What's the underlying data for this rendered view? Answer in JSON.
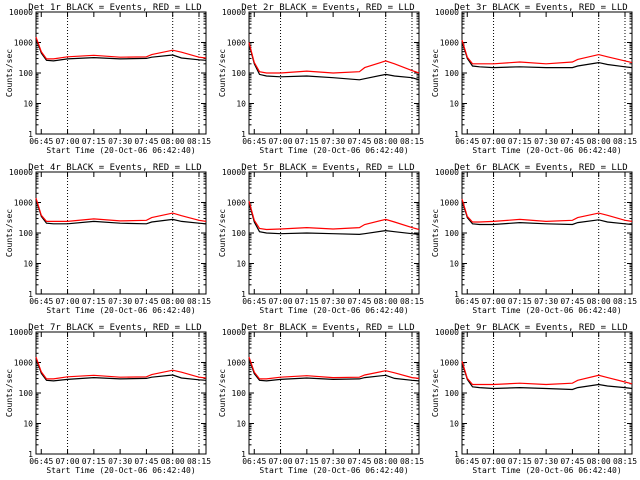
{
  "figure": {
    "ylabel": "Counts/sec",
    "xlabel": "Start Time (20-Oct-06 06:42:40)",
    "x_ticks": [
      "06:45",
      "07:00",
      "07:15",
      "07:30",
      "07:45",
      "08:00",
      "08:15"
    ],
    "y_ticks": [
      "1",
      "10",
      "100",
      "1000",
      "10000"
    ],
    "colors": {
      "events": "#000000",
      "lld": "#ff0000",
      "frame": "#000000"
    }
  },
  "chart_data": [
    {
      "type": "line",
      "title": "Det 1r BLACK = Events, RED = LLD",
      "x": [
        "06:42",
        "06:45",
        "06:48",
        "06:52",
        "07:00",
        "07:15",
        "07:30",
        "07:45",
        "07:48",
        "08:00",
        "08:05",
        "08:15",
        "08:19"
      ],
      "xlim": [
        "06:42",
        "08:19"
      ],
      "ylim": [
        1,
        10000
      ],
      "y_scale": "log",
      "series": [
        {
          "name": "Events",
          "values": [
            1400,
            450,
            260,
            250,
            290,
            320,
            290,
            300,
            330,
            390,
            310,
            270,
            260
          ]
        },
        {
          "name": "LLD",
          "values": [
            1500,
            500,
            290,
            290,
            340,
            380,
            330,
            340,
            400,
            560,
            480,
            330,
            310
          ]
        }
      ]
    },
    {
      "type": "line",
      "title": "Det 2r BLACK = Events, RED = LLD",
      "x": [
        "06:42",
        "06:45",
        "06:48",
        "06:52",
        "07:00",
        "07:15",
        "07:30",
        "07:45",
        "07:48",
        "08:00",
        "08:05",
        "08:15",
        "08:19"
      ],
      "xlim": [
        "06:42",
        "08:19"
      ],
      "ylim": [
        1,
        10000
      ],
      "y_scale": "log",
      "series": [
        {
          "name": "Events",
          "values": [
            900,
            200,
            90,
            80,
            75,
            80,
            70,
            60,
            65,
            90,
            80,
            70,
            60
          ]
        },
        {
          "name": "LLD",
          "values": [
            1000,
            220,
            110,
            100,
            100,
            115,
            100,
            110,
            150,
            250,
            200,
            120,
            100
          ]
        }
      ]
    },
    {
      "type": "line",
      "title": "Det 3r BLACK = Events, RED = LLD",
      "x": [
        "06:42",
        "06:45",
        "06:48",
        "06:52",
        "07:00",
        "07:15",
        "07:30",
        "07:45",
        "07:48",
        "08:00",
        "08:05",
        "08:15",
        "08:19"
      ],
      "xlim": [
        "06:42",
        "08:19"
      ],
      "ylim": [
        1,
        10000
      ],
      "y_scale": "log",
      "series": [
        {
          "name": "Events",
          "values": [
            1100,
            300,
            170,
            160,
            150,
            160,
            150,
            150,
            170,
            220,
            190,
            160,
            150
          ]
        },
        {
          "name": "LLD",
          "values": [
            1200,
            330,
            200,
            200,
            200,
            230,
            200,
            230,
            280,
            400,
            340,
            250,
            220
          ]
        }
      ]
    },
    {
      "type": "line",
      "title": "Det 4r BLACK = Events, RED = LLD",
      "x": [
        "06:42",
        "06:45",
        "06:48",
        "06:52",
        "07:00",
        "07:15",
        "07:30",
        "07:45",
        "07:48",
        "08:00",
        "08:05",
        "08:15",
        "08:19"
      ],
      "xlim": [
        "06:42",
        "08:19"
      ],
      "ylim": [
        1,
        10000
      ],
      "y_scale": "log",
      "series": [
        {
          "name": "Events",
          "values": [
            1300,
            350,
            210,
            200,
            200,
            240,
            210,
            200,
            230,
            280,
            240,
            210,
            200
          ]
        },
        {
          "name": "LLD",
          "values": [
            1400,
            380,
            240,
            240,
            240,
            290,
            250,
            260,
            320,
            450,
            370,
            260,
            240
          ]
        }
      ]
    },
    {
      "type": "line",
      "title": "Det 5r BLACK = Events, RED = LLD",
      "x": [
        "06:42",
        "06:45",
        "06:48",
        "06:52",
        "07:00",
        "07:15",
        "07:30",
        "07:45",
        "07:48",
        "08:00",
        "08:05",
        "08:15",
        "08:19"
      ],
      "xlim": [
        "06:42",
        "08:19"
      ],
      "ylim": [
        1,
        10000
      ],
      "y_scale": "log",
      "series": [
        {
          "name": "Events",
          "values": [
            1000,
            230,
            110,
            100,
            95,
            100,
            95,
            90,
            95,
            120,
            110,
            95,
            90
          ]
        },
        {
          "name": "LLD",
          "values": [
            1100,
            260,
            140,
            130,
            135,
            150,
            135,
            150,
            190,
            280,
            230,
            150,
            130
          ]
        }
      ]
    },
    {
      "type": "line",
      "title": "Det 6r BLACK = Events, RED = LLD",
      "x": [
        "06:42",
        "06:45",
        "06:48",
        "06:52",
        "07:00",
        "07:15",
        "07:30",
        "07:45",
        "07:48",
        "08:00",
        "08:05",
        "08:15",
        "08:19"
      ],
      "xlim": [
        "06:42",
        "08:19"
      ],
      "ylim": [
        1,
        10000
      ],
      "y_scale": "log",
      "series": [
        {
          "name": "Events",
          "values": [
            1200,
            320,
            200,
            190,
            190,
            220,
            200,
            190,
            220,
            270,
            230,
            200,
            190
          ]
        },
        {
          "name": "LLD",
          "values": [
            1300,
            350,
            230,
            230,
            240,
            280,
            240,
            260,
            320,
            450,
            380,
            260,
            240
          ]
        }
      ]
    },
    {
      "type": "line",
      "title": "Det 7r BLACK = Events, RED = LLD",
      "x": [
        "06:42",
        "06:45",
        "06:48",
        "06:52",
        "07:00",
        "07:15",
        "07:30",
        "07:45",
        "07:48",
        "08:00",
        "08:05",
        "08:15",
        "08:19"
      ],
      "xlim": [
        "06:42",
        "08:19"
      ],
      "ylim": [
        1,
        10000
      ],
      "y_scale": "log",
      "series": [
        {
          "name": "Events",
          "values": [
            1400,
            440,
            260,
            250,
            280,
            320,
            290,
            300,
            330,
            390,
            310,
            270,
            260
          ]
        },
        {
          "name": "LLD",
          "values": [
            1500,
            490,
            290,
            290,
            340,
            380,
            330,
            340,
            400,
            560,
            480,
            330,
            310
          ]
        }
      ]
    },
    {
      "type": "line",
      "title": "Det 8r BLACK = Events, RED = LLD",
      "x": [
        "06:42",
        "06:45",
        "06:48",
        "06:52",
        "07:00",
        "07:15",
        "07:30",
        "07:45",
        "07:48",
        "08:00",
        "08:05",
        "08:15",
        "08:19"
      ],
      "xlim": [
        "06:42",
        "08:19"
      ],
      "ylim": [
        1,
        10000
      ],
      "y_scale": "log",
      "series": [
        {
          "name": "Events",
          "values": [
            1400,
            430,
            260,
            250,
            280,
            310,
            280,
            290,
            320,
            380,
            300,
            260,
            250
          ]
        },
        {
          "name": "LLD",
          "values": [
            1500,
            480,
            290,
            290,
            330,
            370,
            320,
            330,
            390,
            540,
            460,
            320,
            300
          ]
        }
      ]
    },
    {
      "type": "line",
      "title": "Det 9r BLACK = Events, RED = LLD",
      "x": [
        "06:42",
        "06:45",
        "06:48",
        "06:52",
        "07:00",
        "07:15",
        "07:30",
        "07:45",
        "07:48",
        "08:00",
        "08:05",
        "08:15",
        "08:19"
      ],
      "xlim": [
        "06:42",
        "08:19"
      ],
      "ylim": [
        1,
        10000
      ],
      "y_scale": "log",
      "series": [
        {
          "name": "Events",
          "values": [
            1000,
            280,
            160,
            150,
            140,
            150,
            140,
            130,
            150,
            190,
            170,
            150,
            140
          ]
        },
        {
          "name": "LLD",
          "values": [
            1100,
            300,
            190,
            190,
            190,
            210,
            190,
            210,
            260,
            380,
            320,
            230,
            200
          ]
        }
      ]
    }
  ]
}
